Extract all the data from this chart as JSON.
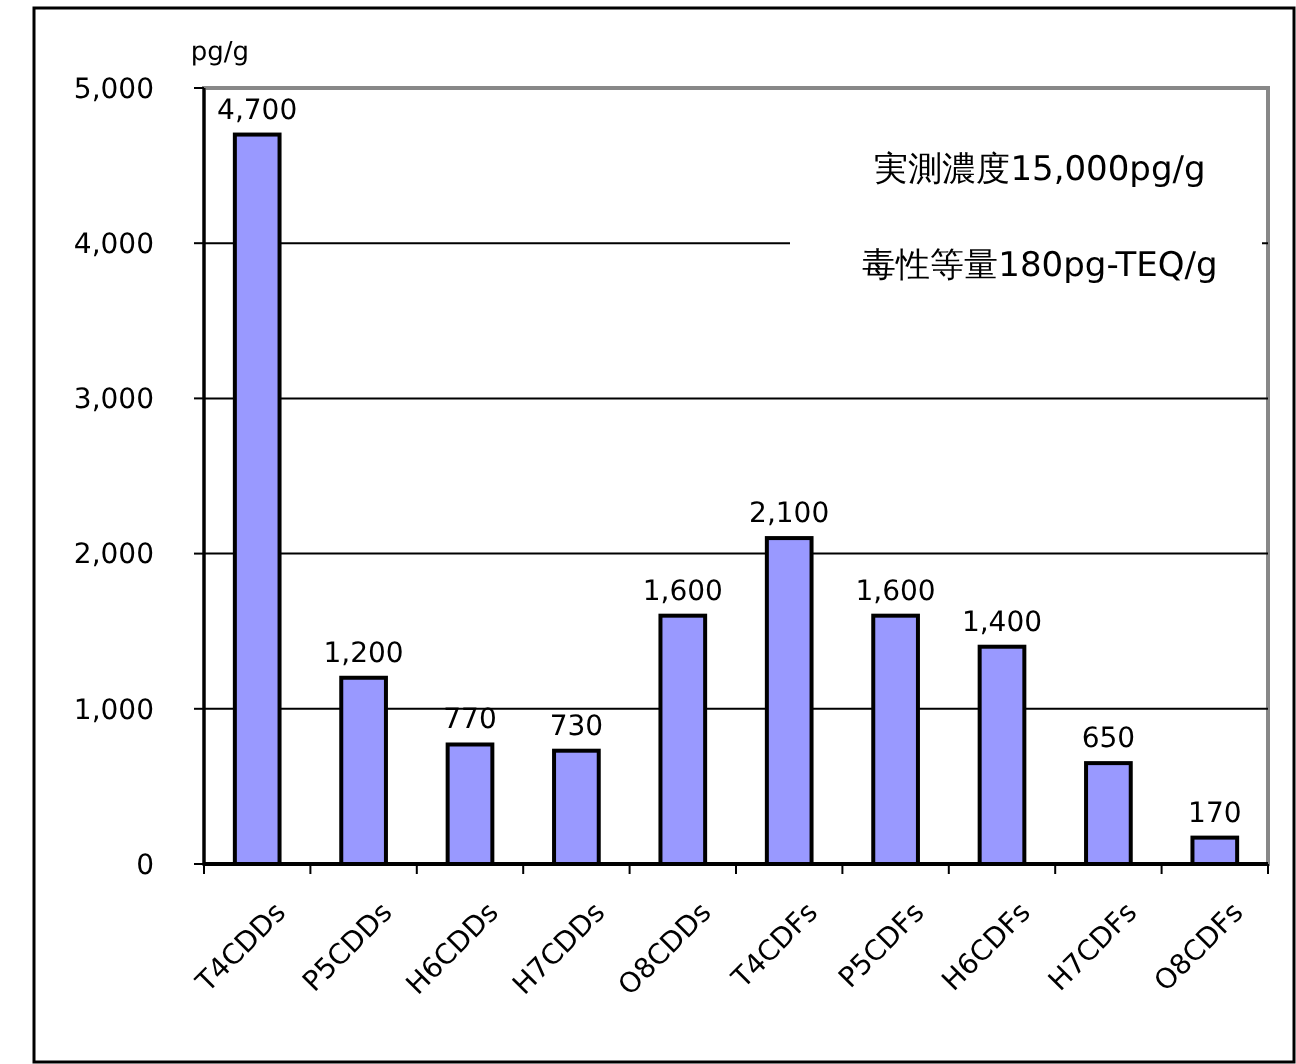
{
  "chart_data": {
    "type": "bar",
    "ylabel": "pg/g",
    "categories": [
      "T4CDDs",
      "P5CDDs",
      "H6CDDs",
      "H7CDDs",
      "O8CDDs",
      "T4CDFs",
      "P5CDFs",
      "H6CDFs",
      "H7CDFs",
      "O8CDFs"
    ],
    "values": [
      4700,
      1200,
      770,
      730,
      1600,
      2100,
      1600,
      1400,
      650,
      170
    ],
    "color": "#9999ff",
    "value_labels": [
      "4,700",
      "1,200",
      "770",
      "730",
      "1,600",
      "2,100",
      "1,600",
      "1,400",
      "650",
      "170"
    ],
    "ylim": [
      0,
      5000
    ],
    "yticks": [
      {
        "value": 0,
        "label": "0"
      },
      {
        "value": 1000,
        "label": "1,000"
      },
      {
        "value": 2000,
        "label": "2,000"
      },
      {
        "value": 3000,
        "label": "3,000"
      },
      {
        "value": 4000,
        "label": "4,000"
      },
      {
        "value": 5000,
        "label": "5,000"
      }
    ],
    "grid": "y",
    "annotations": [
      "実測濃度15,000pg/g",
      "毒性等量180pg-TEQ/g"
    ]
  }
}
